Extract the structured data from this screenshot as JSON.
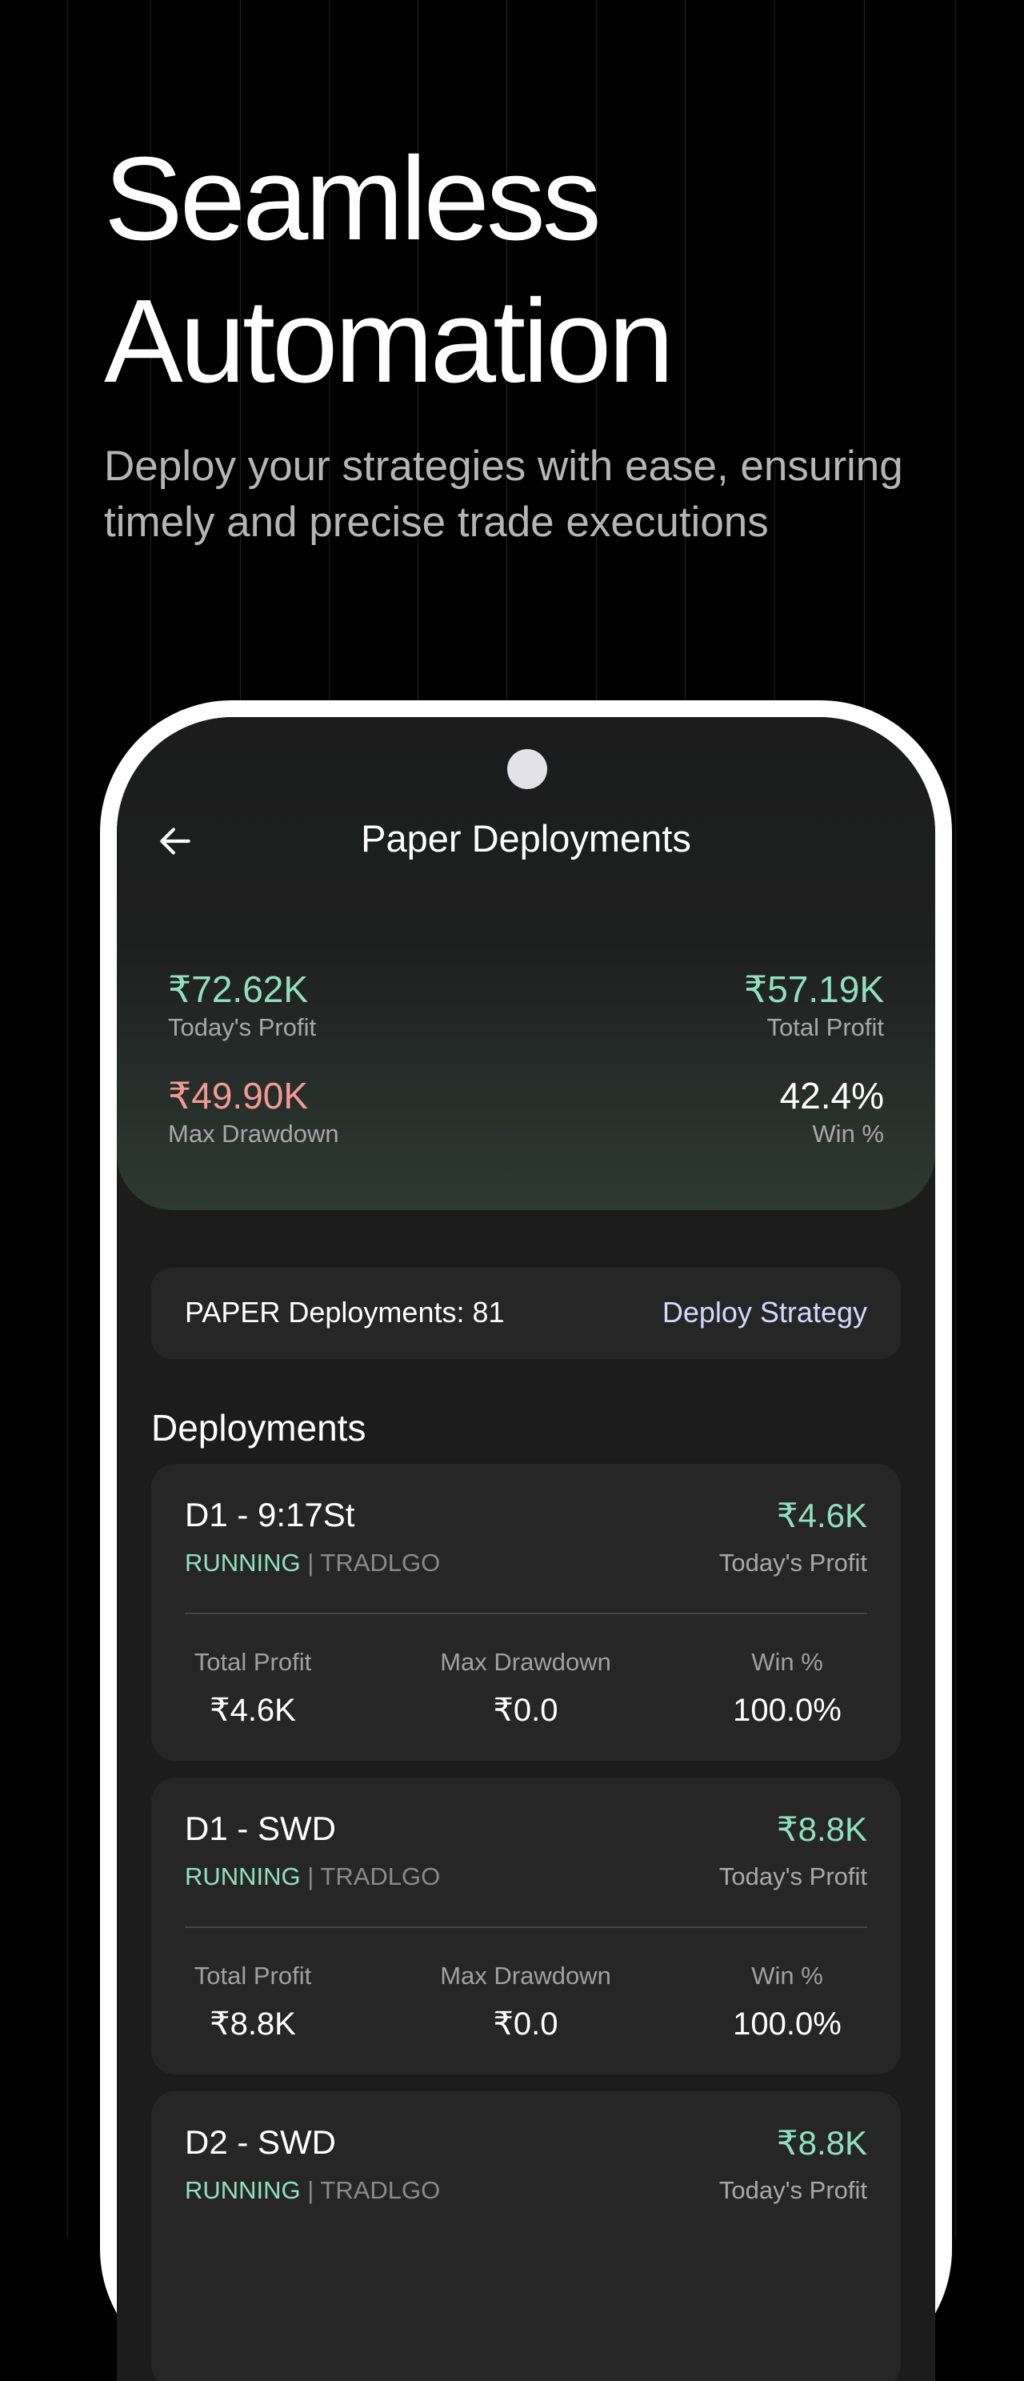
{
  "hero": {
    "title_line1": "Seamless",
    "title_line2": "Automation",
    "subtitle": "Deploy your strategies with ease, ensuring timely and precise trade executions"
  },
  "app": {
    "back_icon": "arrow-left-icon",
    "title": "Paper Deployments",
    "summary": {
      "todays_profit": {
        "value": "₹72.62K",
        "label": "Today's Profit"
      },
      "total_profit": {
        "value": "₹57.19K",
        "label": "Total Profit"
      },
      "max_drawdown": {
        "value": "₹49.90K",
        "label": "Max Drawdown"
      },
      "win_pct": {
        "value": "42.4%",
        "label": "Win %"
      }
    },
    "count_label": "PAPER Deployments: 81",
    "deploy_button": "Deploy Strategy",
    "section_title": "Deployments",
    "deployments": [
      {
        "name": "D1 - 9:17St",
        "todays_profit": "₹4.6K",
        "todays_profit_label": "Today's Profit",
        "status": "RUNNING",
        "separator": "|",
        "broker": "TRADLGO",
        "total_profit_label": "Total Profit",
        "total_profit": "₹4.6K",
        "max_drawdown_label": "Max Drawdown",
        "max_drawdown": "₹0.0",
        "win_label": "Win %",
        "win": "100.0%"
      },
      {
        "name": "D1 - SWD",
        "todays_profit": "₹8.8K",
        "todays_profit_label": "Today's Profit",
        "status": "RUNNING",
        "separator": "|",
        "broker": "TRADLGO",
        "total_profit_label": "Total Profit",
        "total_profit": "₹8.8K",
        "max_drawdown_label": "Max Drawdown",
        "max_drawdown": "₹0.0",
        "win_label": "Win %",
        "win": "100.0%"
      },
      {
        "name": "D2 - SWD",
        "todays_profit": "₹8.8K",
        "todays_profit_label": "Today's Profit",
        "status": "RUNNING",
        "separator": "|",
        "broker": "TRADLGO"
      }
    ]
  },
  "colors": {
    "profit": "#8fe0c3",
    "loss": "#f59a93",
    "accent": "#d8d6ff",
    "card": "#262626"
  }
}
